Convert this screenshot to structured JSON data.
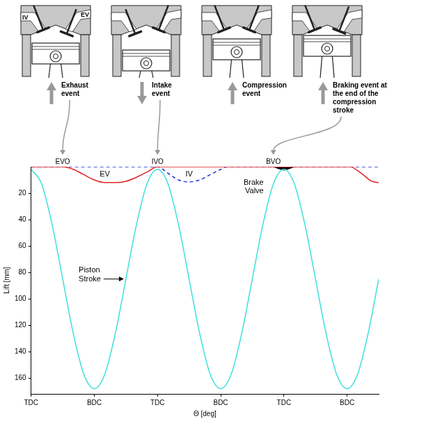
{
  "diagram": {
    "valve_labels": [
      "IV",
      "EV"
    ],
    "panels": [
      {
        "caption": "Exhaust event",
        "arrow_to": "EVO"
      },
      {
        "caption": "Intake event",
        "arrow_to": "IVO"
      },
      {
        "caption": "Compression event"
      },
      {
        "caption": "Braking event at the end of the compression stroke",
        "arrow_to": "BVO"
      }
    ]
  },
  "chart_data": {
    "type": "line",
    "x_label": "Θ [deg]",
    "y_label": "Lift [mm]",
    "xlim": [
      0,
      990
    ],
    "xticks": [
      {
        "value": 0,
        "label": "TDC"
      },
      {
        "value": 180,
        "label": "BDC"
      },
      {
        "value": 360,
        "label": "TDC"
      },
      {
        "value": 540,
        "label": "BDC"
      },
      {
        "value": 720,
        "label": "TDC"
      },
      {
        "value": 900,
        "label": "BDC"
      }
    ],
    "ylim": [
      172,
      0
    ],
    "yticks": [
      20,
      40,
      60,
      80,
      100,
      120,
      140,
      160
    ],
    "grid": false,
    "series": [
      {
        "name": "Piston Stroke",
        "color": "#3fdede",
        "line_style": "solid",
        "x": [
          0,
          30,
          60,
          90,
          120,
          150,
          180,
          210,
          240,
          270,
          300,
          330,
          360,
          390,
          420,
          450,
          480,
          510,
          540,
          570,
          600,
          630,
          660,
          690,
          720,
          750,
          780,
          810,
          840,
          870,
          900,
          930,
          960,
          990
        ],
        "values": [
          2,
          13,
          44,
          85,
          126,
          157,
          168,
          157,
          126,
          85,
          44,
          13,
          2,
          13,
          44,
          85,
          126,
          157,
          168,
          157,
          126,
          85,
          44,
          13,
          2,
          13,
          44,
          85,
          126,
          157,
          168,
          157,
          126,
          85
        ]
      },
      {
        "name": "EV",
        "open_label": "EVO",
        "color": "#dd2222",
        "line_style": "solid",
        "x": [
          0,
          90,
          120,
          150,
          180,
          210,
          240,
          270,
          300,
          330,
          360,
          910,
          930,
          950,
          970,
          990
        ],
        "values": [
          0,
          0,
          2,
          6,
          10,
          12,
          12,
          11,
          8,
          4,
          0,
          0,
          3,
          7,
          11,
          12
        ]
      },
      {
        "name": "IV",
        "open_label": "IVO",
        "color": "#2233dd",
        "line_style": "dashed",
        "x": [
          0,
          360,
          390,
          420,
          450,
          480,
          510,
          540,
          560,
          990
        ],
        "values": [
          0,
          0,
          5,
          10,
          11.5,
          10,
          6,
          2,
          0,
          0
        ]
      },
      {
        "name": "Brake Valve",
        "open_label": "BVO",
        "type": "area",
        "color": "#000000",
        "line_style": "solid",
        "x": [
          690,
          705,
          720,
          735,
          750
        ],
        "values": [
          0,
          1.5,
          2.5,
          1.5,
          0
        ]
      }
    ]
  }
}
